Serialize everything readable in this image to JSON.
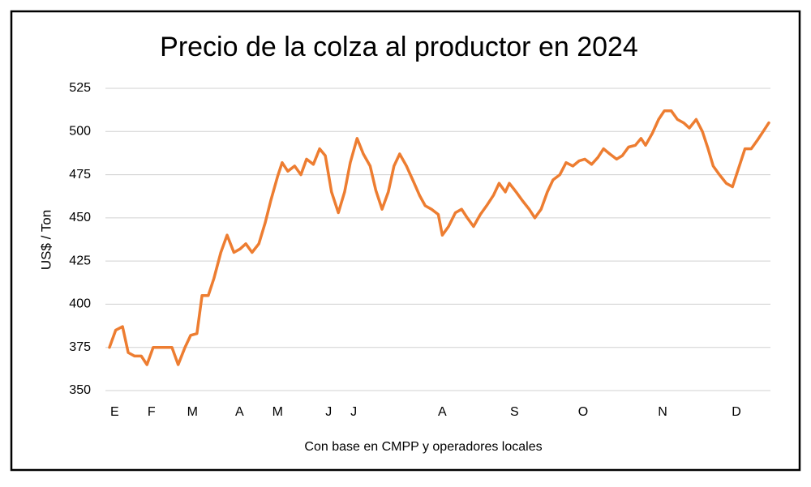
{
  "chart_data": {
    "type": "line",
    "title": "Precio de la colza al productor en 2024",
    "y_label": "US$ / Ton",
    "caption": "Con base en CMPP y operadores locales",
    "color": "#ED7D31",
    "grid": true,
    "x": [
      0,
      1.1,
      2.3,
      3.3,
      4.4,
      5.6,
      6.6,
      7.7,
      8.9,
      10,
      11,
      12.1,
      13.3,
      14.3,
      15.4,
      16.3,
      17.4,
      18.4,
      19.6,
      20.7,
      21.9,
      23,
      24,
      25.1,
      26.3,
      27.4,
      28.4,
      29.6,
      30.4,
      31.4,
      32.6,
      33.7,
      34.7,
      35.9,
      37,
      38,
      39.1,
      40.3,
      41.4,
      42.4,
      43.6,
      44.7,
      45.9,
      46.9,
      48,
      49.1,
      50.1,
      51.1,
      52.3,
      53.4,
      54.6,
      55.6,
      56.7,
      57.9,
      58.6,
      59.7,
      60.9,
      62,
      63,
      64.1,
      65.3,
      66.4,
      67.6,
      68.6,
      69.7,
      70.4,
      71.6,
      72.7,
      73.9,
      74.9,
      76,
      77.1,
      78.1,
      79.3,
      80.4,
      81.6,
      82.7,
      83.7,
      84.9,
      86,
      87,
      88.1,
      89.3,
      90.3,
      91.4,
      92.6,
      93.6,
      94.4,
      95.6,
      96.7,
      97.7,
      98.9,
      100,
      101.1,
      102.1,
      103.3,
      104.4,
      105.4,
      106.3,
      107.4,
      108.6,
      109.7,
      110.9,
      111.9,
      113,
      114.1,
      115.1,
      116.1
    ],
    "values": [
      375,
      385,
      387,
      372,
      370,
      370,
      365,
      375,
      375,
      375,
      375,
      365,
      375,
      382,
      383,
      405,
      405,
      415,
      430,
      440,
      430,
      432,
      435,
      430,
      435,
      447,
      460,
      474,
      482,
      477,
      480,
      475,
      484,
      481,
      490,
      486,
      465,
      453,
      465,
      482,
      496,
      487,
      480,
      466,
      455,
      465,
      480,
      487,
      480,
      472,
      463,
      457,
      455,
      452,
      440,
      445,
      453,
      455,
      450,
      445,
      452,
      457,
      463,
      470,
      465,
      470,
      465,
      460,
      455,
      450,
      455,
      465,
      472,
      475,
      482,
      480,
      483,
      484,
      481,
      485,
      490,
      487,
      484,
      486,
      491,
      492,
      496,
      492,
      499,
      507,
      512,
      512,
      507,
      505,
      502,
      507,
      500,
      490,
      480,
      475,
      470,
      468,
      480,
      490,
      490,
      495,
      500,
      505
    ],
    "xlim": [
      0,
      116.1
    ],
    "xticks": [
      {
        "value": 0.9,
        "label": "E"
      },
      {
        "value": 7.4,
        "label": "F"
      },
      {
        "value": 14.6,
        "label": "M"
      },
      {
        "value": 22.9,
        "label": "A"
      },
      {
        "value": 29.6,
        "label": "M"
      },
      {
        "value": 38.6,
        "label": "J"
      },
      {
        "value": 43,
        "label": "J"
      },
      {
        "value": 58.6,
        "label": "A"
      },
      {
        "value": 71.3,
        "label": "S"
      },
      {
        "value": 83.4,
        "label": "O"
      },
      {
        "value": 97.4,
        "label": "N"
      },
      {
        "value": 110.4,
        "label": "D"
      }
    ],
    "ylim": [
      350,
      525
    ],
    "yticks": [
      350,
      375,
      400,
      425,
      450,
      475,
      500,
      525
    ]
  }
}
